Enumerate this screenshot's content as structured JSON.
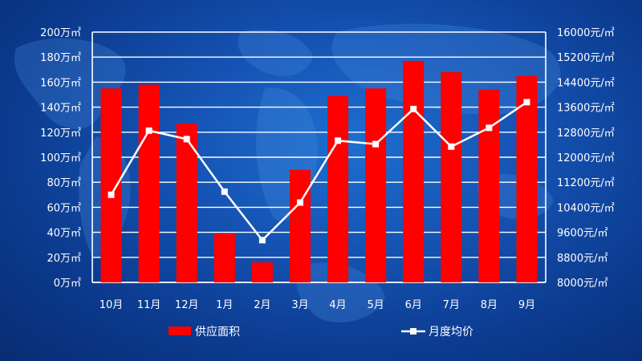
{
  "colors": {
    "bar": "#ff0000",
    "line": "#ffffff",
    "axis": "#ffffff",
    "grid": "#ffffff",
    "text": "#ffffff"
  },
  "chart_data": {
    "type": "bar+line",
    "categories": [
      "10月",
      "11月",
      "12月",
      "1月",
      "2月",
      "3月",
      "4月",
      "5月",
      "6月",
      "7月",
      "8月",
      "9月"
    ],
    "series": [
      {
        "name": "供应面积",
        "type": "bar",
        "axis": "left",
        "values": [
          155,
          158,
          127,
          39,
          16,
          90,
          149,
          155,
          177,
          168,
          154,
          165
        ]
      },
      {
        "name": "月度均价",
        "type": "line",
        "axis": "right",
        "values": [
          10800,
          12850,
          12580,
          10900,
          9350,
          10550,
          12530,
          12420,
          13540,
          12340,
          12940,
          13760
        ]
      }
    ],
    "y_left": {
      "lim": [
        0,
        200
      ],
      "ticks": [
        "0万㎡",
        "20万㎡",
        "40万㎡",
        "60万㎡",
        "80万㎡",
        "100万㎡",
        "120万㎡",
        "140万㎡",
        "160万㎡",
        "180万㎡",
        "200万㎡"
      ]
    },
    "y_right": {
      "lim": [
        8000,
        16000
      ],
      "ticks": [
        "8000元/㎡",
        "8800元/㎡",
        "9600元/㎡",
        "10400元/㎡",
        "11200元/㎡",
        "12000元/㎡",
        "12800元/㎡",
        "13600元/㎡",
        "14400元/㎡",
        "15200元/㎡",
        "16000元/㎡"
      ]
    },
    "grid": true,
    "legend_position": "bottom"
  }
}
